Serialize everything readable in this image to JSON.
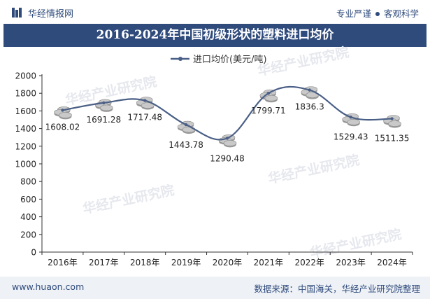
{
  "header": {
    "brand": "华经情报网",
    "tagline_left": "专业严谨",
    "tagline_right": "客观科学"
  },
  "title": "2016-2024年中国初级形状的塑料进口均价",
  "footer": {
    "url": "www.huaon.com",
    "source": "数据来源：中国海关，华经产业研究院整理"
  },
  "watermark": "华经产业研究院",
  "colors": {
    "brand": "#2f4b7c",
    "line": "#4a5f86",
    "coin": "#c9c9c9"
  },
  "chart_data": {
    "type": "line",
    "categories": [
      "2016年",
      "2017年",
      "2018年",
      "2019年",
      "2020年",
      "2021年",
      "2022年",
      "2023年",
      "2024年"
    ],
    "series": [
      {
        "name": "进口均价(美元/吨)",
        "values": [
          1608.02,
          1691.28,
          1717.48,
          1443.78,
          1290.48,
          1799.71,
          1836.3,
          1529.43,
          1511.35
        ],
        "labels": [
          "1608.02",
          "1691.28",
          "1717.48",
          "1443.78",
          "1290.48",
          "1799.71",
          "1836.3",
          "1529.43",
          "1511.35"
        ]
      }
    ],
    "ylim": [
      0,
      2000
    ],
    "yticks": [
      0,
      200,
      400,
      600,
      800,
      1000,
      1200,
      1400,
      1600,
      1800,
      2000
    ],
    "legend": "top-center",
    "grid": false
  }
}
